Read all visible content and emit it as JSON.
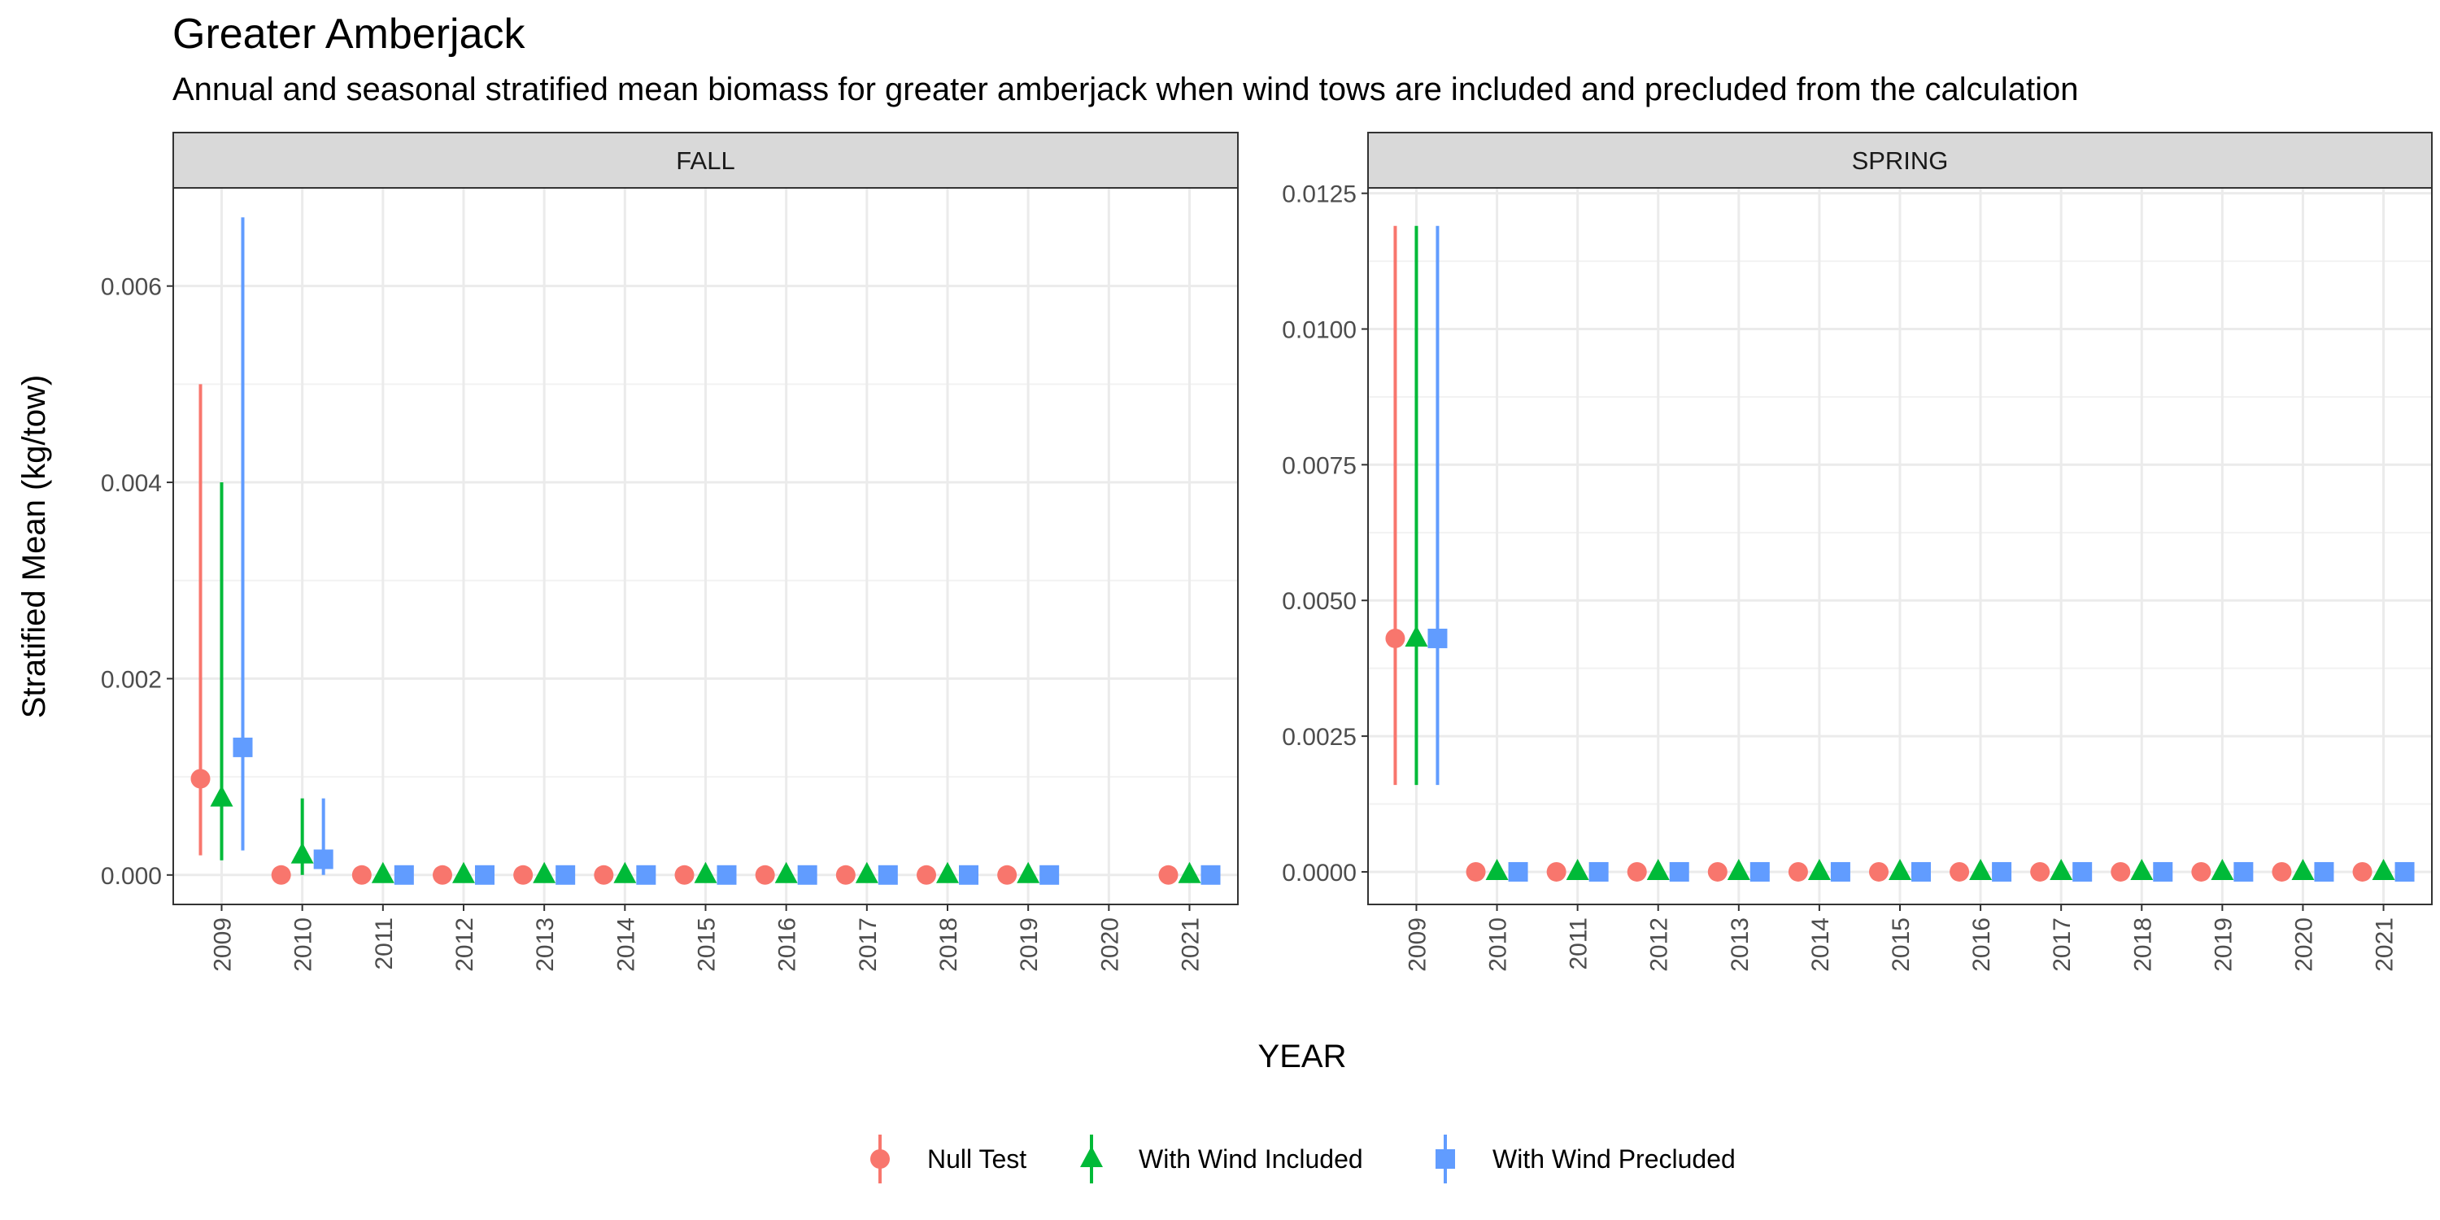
{
  "title": "Greater Amberjack",
  "subtitle": "Annual and seasonal stratified mean biomass for greater amberjack when wind tows are included and precluded from the calculation",
  "colors": {
    "null_test": "#F8766D",
    "with_wind_included": "#00BA38",
    "with_wind_precluded": "#619CFF"
  },
  "chart_data": {
    "type": "scatter",
    "xlabel": "YEAR",
    "ylabel": "Stratified Mean (kg/tow)",
    "grid": true,
    "legend_position": "bottom",
    "legend": [
      {
        "name": "Null Test",
        "shape": "circle"
      },
      {
        "name": "With Wind Included",
        "shape": "triangle"
      },
      {
        "name": "With Wind Precluded",
        "shape": "square"
      }
    ],
    "panels": [
      {
        "facet": "FALL",
        "years": [
          "2009",
          "2010",
          "2011",
          "2012",
          "2013",
          "2014",
          "2015",
          "2016",
          "2017",
          "2018",
          "2019",
          "2020",
          "2021"
        ],
        "ylim": [
          -0.0003,
          0.007
        ],
        "yticks": [
          "0.000",
          "0.002",
          "0.004",
          "0.006"
        ],
        "series": [
          {
            "name": "Null Test",
            "points": [
              {
                "year": "2009",
                "mean": 0.00098,
                "lower": 0.0002,
                "upper": 0.005
              },
              {
                "year": "2010",
                "mean": 0.0,
                "lower": 0.0,
                "upper": 0.0
              },
              {
                "year": "2011",
                "mean": 0.0,
                "lower": 0.0,
                "upper": 0.0
              },
              {
                "year": "2012",
                "mean": 0.0,
                "lower": 0.0,
                "upper": 0.0
              },
              {
                "year": "2013",
                "mean": 0.0,
                "lower": 0.0,
                "upper": 0.0
              },
              {
                "year": "2014",
                "mean": 0.0,
                "lower": 0.0,
                "upper": 0.0
              },
              {
                "year": "2015",
                "mean": 0.0,
                "lower": 0.0,
                "upper": 0.0
              },
              {
                "year": "2016",
                "mean": 0.0,
                "lower": 0.0,
                "upper": 0.0
              },
              {
                "year": "2017",
                "mean": 0.0,
                "lower": 0.0,
                "upper": 0.0
              },
              {
                "year": "2018",
                "mean": 0.0,
                "lower": 0.0,
                "upper": 0.0
              },
              {
                "year": "2019",
                "mean": 0.0,
                "lower": 0.0,
                "upper": 0.0
              },
              {
                "year": "2021",
                "mean": 0.0,
                "lower": 0.0,
                "upper": 0.0
              }
            ]
          },
          {
            "name": "With Wind Included",
            "points": [
              {
                "year": "2009",
                "mean": 0.00078,
                "lower": 0.00015,
                "upper": 0.004
              },
              {
                "year": "2010",
                "mean": 0.0002,
                "lower": 0.0,
                "upper": 0.00078
              },
              {
                "year": "2011",
                "mean": 0.0,
                "lower": 0.0,
                "upper": 0.0
              },
              {
                "year": "2012",
                "mean": 0.0,
                "lower": 0.0,
                "upper": 0.0
              },
              {
                "year": "2013",
                "mean": 0.0,
                "lower": 0.0,
                "upper": 0.0
              },
              {
                "year": "2014",
                "mean": 0.0,
                "lower": 0.0,
                "upper": 0.0
              },
              {
                "year": "2015",
                "mean": 0.0,
                "lower": 0.0,
                "upper": 0.0
              },
              {
                "year": "2016",
                "mean": 0.0,
                "lower": 0.0,
                "upper": 0.0
              },
              {
                "year": "2017",
                "mean": 0.0,
                "lower": 0.0,
                "upper": 0.0
              },
              {
                "year": "2018",
                "mean": 0.0,
                "lower": 0.0,
                "upper": 0.0
              },
              {
                "year": "2019",
                "mean": 0.0,
                "lower": 0.0,
                "upper": 0.0
              },
              {
                "year": "2021",
                "mean": 0.0,
                "lower": 0.0,
                "upper": 0.0
              }
            ]
          },
          {
            "name": "With Wind Precluded",
            "points": [
              {
                "year": "2009",
                "mean": 0.0013,
                "lower": 0.00025,
                "upper": 0.0067
              },
              {
                "year": "2010",
                "mean": 0.00016,
                "lower": 0.0,
                "upper": 0.00078
              },
              {
                "year": "2011",
                "mean": 0.0,
                "lower": 0.0,
                "upper": 0.0
              },
              {
                "year": "2012",
                "mean": 0.0,
                "lower": 0.0,
                "upper": 0.0
              },
              {
                "year": "2013",
                "mean": 0.0,
                "lower": 0.0,
                "upper": 0.0
              },
              {
                "year": "2014",
                "mean": 0.0,
                "lower": 0.0,
                "upper": 0.0
              },
              {
                "year": "2015",
                "mean": 0.0,
                "lower": 0.0,
                "upper": 0.0
              },
              {
                "year": "2016",
                "mean": 0.0,
                "lower": 0.0,
                "upper": 0.0
              },
              {
                "year": "2017",
                "mean": 0.0,
                "lower": 0.0,
                "upper": 0.0
              },
              {
                "year": "2018",
                "mean": 0.0,
                "lower": 0.0,
                "upper": 0.0
              },
              {
                "year": "2019",
                "mean": 0.0,
                "lower": 0.0,
                "upper": 0.0
              },
              {
                "year": "2021",
                "mean": 0.0,
                "lower": 0.0,
                "upper": 0.0
              }
            ]
          }
        ]
      },
      {
        "facet": "SPRING",
        "years": [
          "2009",
          "2010",
          "2011",
          "2012",
          "2013",
          "2014",
          "2015",
          "2016",
          "2017",
          "2018",
          "2019",
          "2020",
          "2021"
        ],
        "ylim": [
          -0.0006,
          0.0126
        ],
        "yticks": [
          "0.0000",
          "0.0025",
          "0.0050",
          "0.0075",
          "0.0100",
          "0.0125"
        ],
        "series": [
          {
            "name": "Null Test",
            "points": [
              {
                "year": "2009",
                "mean": 0.0043,
                "lower": 0.0016,
                "upper": 0.0119
              },
              {
                "year": "2010",
                "mean": 0.0,
                "lower": 0.0,
                "upper": 0.0
              },
              {
                "year": "2011",
                "mean": 0.0,
                "lower": 0.0,
                "upper": 0.0
              },
              {
                "year": "2012",
                "mean": 0.0,
                "lower": 0.0,
                "upper": 0.0
              },
              {
                "year": "2013",
                "mean": 0.0,
                "lower": 0.0,
                "upper": 0.0
              },
              {
                "year": "2014",
                "mean": 0.0,
                "lower": 0.0,
                "upper": 0.0
              },
              {
                "year": "2015",
                "mean": 0.0,
                "lower": 0.0,
                "upper": 0.0
              },
              {
                "year": "2016",
                "mean": 0.0,
                "lower": 0.0,
                "upper": 0.0
              },
              {
                "year": "2017",
                "mean": 0.0,
                "lower": 0.0,
                "upper": 0.0
              },
              {
                "year": "2018",
                "mean": 0.0,
                "lower": 0.0,
                "upper": 0.0
              },
              {
                "year": "2019",
                "mean": 0.0,
                "lower": 0.0,
                "upper": 0.0
              },
              {
                "year": "2020",
                "mean": 0.0,
                "lower": 0.0,
                "upper": 0.0
              },
              {
                "year": "2021",
                "mean": 0.0,
                "lower": 0.0,
                "upper": 0.0
              }
            ]
          },
          {
            "name": "With Wind Included",
            "points": [
              {
                "year": "2009",
                "mean": 0.0043,
                "lower": 0.0016,
                "upper": 0.0119
              },
              {
                "year": "2010",
                "mean": 0.0,
                "lower": 0.0,
                "upper": 0.0
              },
              {
                "year": "2011",
                "mean": 0.0,
                "lower": 0.0,
                "upper": 0.0
              },
              {
                "year": "2012",
                "mean": 0.0,
                "lower": 0.0,
                "upper": 0.0
              },
              {
                "year": "2013",
                "mean": 0.0,
                "lower": 0.0,
                "upper": 0.0
              },
              {
                "year": "2014",
                "mean": 0.0,
                "lower": 0.0,
                "upper": 0.0
              },
              {
                "year": "2015",
                "mean": 0.0,
                "lower": 0.0,
                "upper": 0.0
              },
              {
                "year": "2016",
                "mean": 0.0,
                "lower": 0.0,
                "upper": 0.0
              },
              {
                "year": "2017",
                "mean": 0.0,
                "lower": 0.0,
                "upper": 0.0
              },
              {
                "year": "2018",
                "mean": 0.0,
                "lower": 0.0,
                "upper": 0.0
              },
              {
                "year": "2019",
                "mean": 0.0,
                "lower": 0.0,
                "upper": 0.0
              },
              {
                "year": "2020",
                "mean": 0.0,
                "lower": 0.0,
                "upper": 0.0
              },
              {
                "year": "2021",
                "mean": 0.0,
                "lower": 0.0,
                "upper": 0.0
              }
            ]
          },
          {
            "name": "With Wind Precluded",
            "points": [
              {
                "year": "2009",
                "mean": 0.0043,
                "lower": 0.0016,
                "upper": 0.0119
              },
              {
                "year": "2010",
                "mean": 0.0,
                "lower": 0.0,
                "upper": 0.0
              },
              {
                "year": "2011",
                "mean": 0.0,
                "lower": 0.0,
                "upper": 0.0
              },
              {
                "year": "2012",
                "mean": 0.0,
                "lower": 0.0,
                "upper": 0.0
              },
              {
                "year": "2013",
                "mean": 0.0,
                "lower": 0.0,
                "upper": 0.0
              },
              {
                "year": "2014",
                "mean": 0.0,
                "lower": 0.0,
                "upper": 0.0
              },
              {
                "year": "2015",
                "mean": 0.0,
                "lower": 0.0,
                "upper": 0.0
              },
              {
                "year": "2016",
                "mean": 0.0,
                "lower": 0.0,
                "upper": 0.0
              },
              {
                "year": "2017",
                "mean": 0.0,
                "lower": 0.0,
                "upper": 0.0
              },
              {
                "year": "2018",
                "mean": 0.0,
                "lower": 0.0,
                "upper": 0.0
              },
              {
                "year": "2019",
                "mean": 0.0,
                "lower": 0.0,
                "upper": 0.0
              },
              {
                "year": "2020",
                "mean": 0.0,
                "lower": 0.0,
                "upper": 0.0
              },
              {
                "year": "2021",
                "mean": 0.0,
                "lower": 0.0,
                "upper": 0.0
              }
            ]
          }
        ]
      }
    ]
  }
}
